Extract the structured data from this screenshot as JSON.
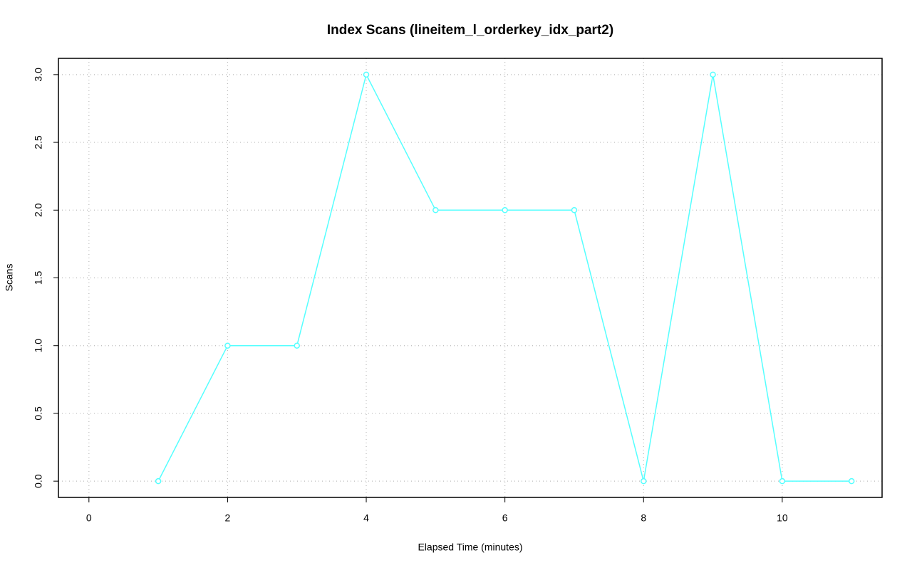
{
  "chart_data": {
    "type": "line",
    "title": "Index Scans (lineitem_l_orderkey_idx_part2)",
    "x_label": "Elapsed Time (minutes)",
    "y_label": "Scans",
    "x": [
      1,
      2,
      3,
      4,
      5,
      6,
      7,
      8,
      9,
      10,
      11
    ],
    "series": [
      {
        "name": "lineitem_l_orderkey_idx_part2",
        "color": "#55ffff",
        "values": [
          0,
          1,
          1,
          3,
          2,
          2,
          2,
          0,
          3,
          0,
          0
        ]
      }
    ],
    "xlim": [
      -0.44,
      11.44
    ],
    "ylim": [
      -0.12,
      3.12
    ],
    "xticks": [
      0,
      2,
      4,
      6,
      8,
      10
    ],
    "yticks": [
      {
        "value": 0,
        "label": "0.0"
      },
      {
        "value": 0.5,
        "label": "0.5"
      },
      {
        "value": 1,
        "label": "1.0"
      },
      {
        "value": 1.5,
        "label": "1.5"
      },
      {
        "value": 2,
        "label": "2.0"
      },
      {
        "value": 2.5,
        "label": "2.5"
      },
      {
        "value": 3,
        "label": "3.0"
      }
    ],
    "grid": true
  }
}
